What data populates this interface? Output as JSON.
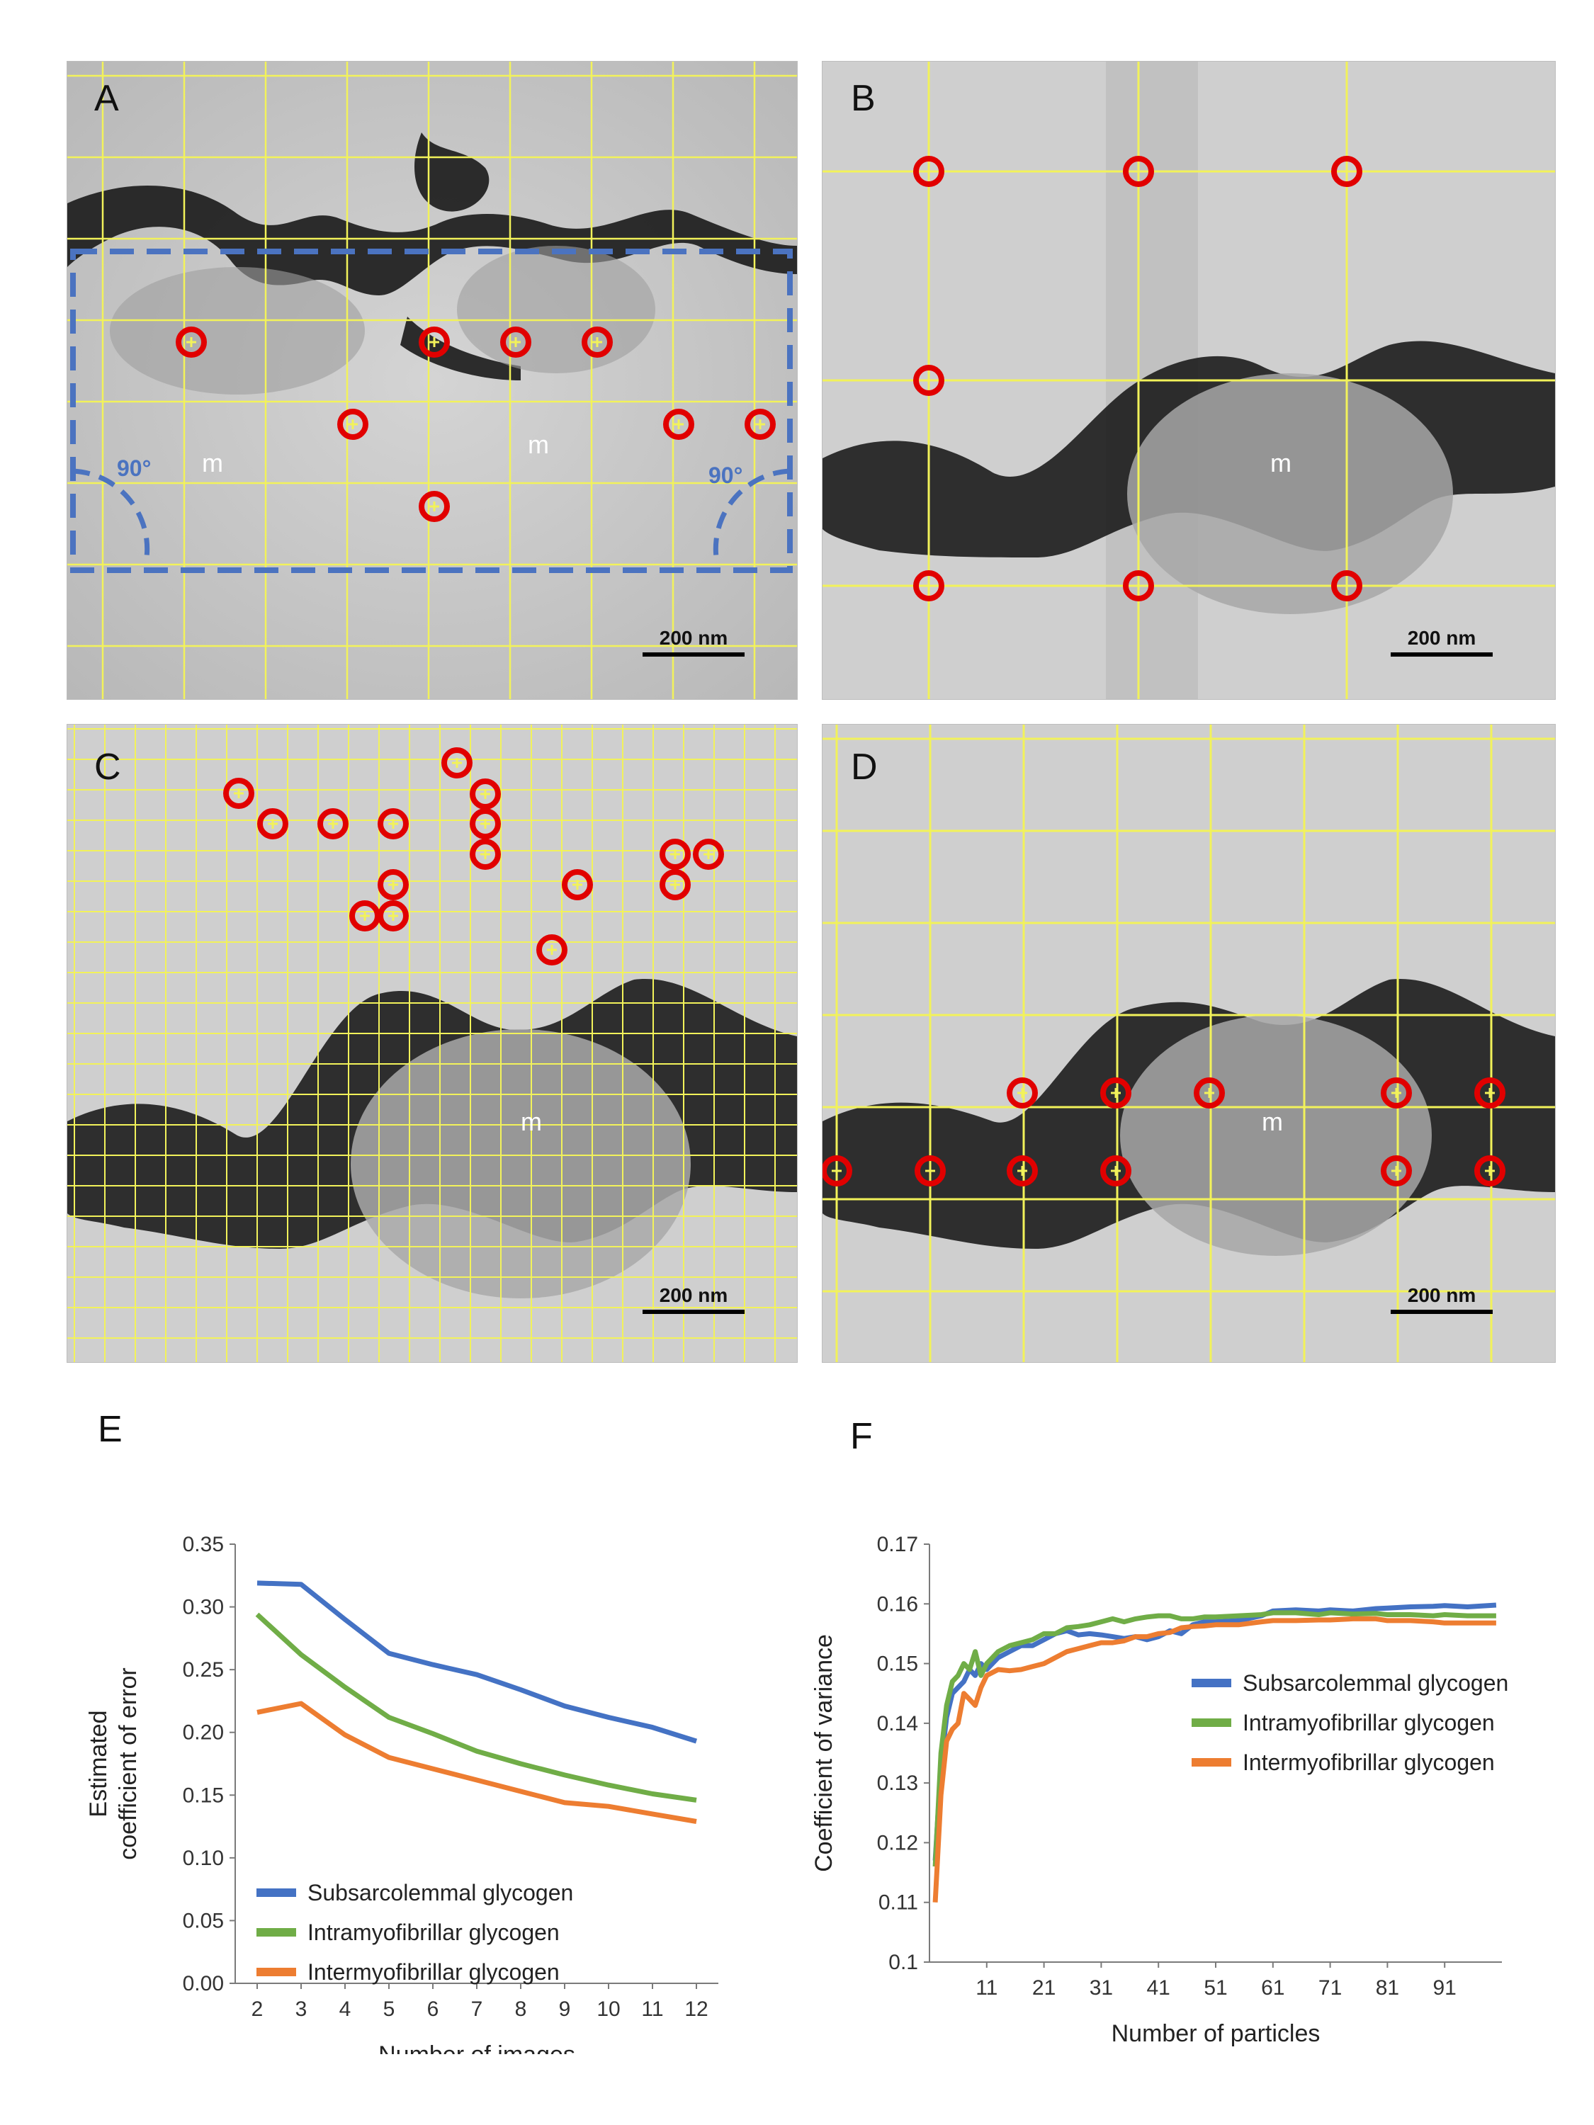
{
  "panels": {
    "A": {
      "label": "A",
      "m_labels": [
        "m",
        "m"
      ],
      "scale_bar": "200 nm",
      "angles": [
        "90°",
        "90°"
      ]
    },
    "B": {
      "label": "B",
      "m_labels": [
        "m"
      ],
      "scale_bar": "200 nm"
    },
    "C": {
      "label": "C",
      "m_labels": [
        "m"
      ],
      "scale_bar": "200 nm"
    },
    "D": {
      "label": "D",
      "m_labels": [
        "m"
      ],
      "scale_bar": "200 nm"
    }
  },
  "colors": {
    "blue": "#4472c4",
    "green": "#70ad47",
    "orange": "#ed7d31",
    "grid": "#f2f25a",
    "marker": "#e10000",
    "dashed_box": "#4b73c0"
  },
  "chart_data": [
    {
      "panel": "E",
      "type": "line",
      "title": "",
      "xlabel": "Number of images",
      "ylabel_lines": [
        "Estimated",
        "coefficient of error"
      ],
      "x": [
        2,
        3,
        4,
        5,
        6,
        7,
        8,
        9,
        10,
        11,
        12
      ],
      "x_ticks": [
        "2",
        "3",
        "4",
        "5",
        "6",
        "7",
        "8",
        "9",
        "10",
        "11",
        "12"
      ],
      "ylim": [
        0,
        0.35
      ],
      "y_ticks": [
        "0.00",
        "0.05",
        "0.10",
        "0.15",
        "0.20",
        "0.25",
        "0.30",
        "0.35"
      ],
      "legend_position": "bottom-left",
      "series": [
        {
          "name": "Subsarcolemmal glycogen",
          "color": "#4472c4",
          "values": [
            0.319,
            0.318,
            0.29,
            0.263,
            0.254,
            0.246,
            0.234,
            0.221,
            0.212,
            0.204,
            0.193
          ]
        },
        {
          "name": "Intramyofibrillar glycogen",
          "color": "#70ad47",
          "values": [
            0.294,
            0.262,
            0.236,
            0.212,
            0.199,
            0.185,
            0.175,
            0.166,
            0.158,
            0.151,
            0.146
          ]
        },
        {
          "name": "Intermyofibrillar glycogen",
          "color": "#ed7d31",
          "values": [
            0.216,
            0.223,
            0.198,
            0.18,
            0.171,
            0.162,
            0.153,
            0.144,
            0.141,
            0.135,
            0.129
          ]
        }
      ]
    },
    {
      "panel": "F",
      "type": "line",
      "title": "",
      "xlabel": "Number of particles",
      "ylabel": "Coefficient of variance",
      "x_range": [
        2,
        100
      ],
      "x_ticks": [
        "11",
        "21",
        "31",
        "41",
        "51",
        "61",
        "71",
        "81",
        "91"
      ],
      "ylim": [
        0.1,
        0.17
      ],
      "y_ticks": [
        "0.1",
        "0.11",
        "0.12",
        "0.13",
        "0.14",
        "0.15",
        "0.16",
        "0.17"
      ],
      "legend_position": "middle-right",
      "series": [
        {
          "name": "Subsarcolemmal glycogen",
          "color": "#4472c4",
          "x": [
            2,
            3,
            4,
            5,
            6,
            7,
            8,
            9,
            10,
            11,
            13,
            15,
            17,
            19,
            21,
            23,
            25,
            27,
            29,
            31,
            33,
            35,
            37,
            39,
            41,
            43,
            45,
            47,
            49,
            51,
            55,
            59,
            61,
            65,
            69,
            71,
            75,
            79,
            81,
            85,
            89,
            91,
            95,
            100
          ],
          "values": [
            0.117,
            0.133,
            0.141,
            0.145,
            0.146,
            0.147,
            0.149,
            0.148,
            0.15,
            0.149,
            0.151,
            0.152,
            0.153,
            0.153,
            0.154,
            0.155,
            0.1555,
            0.1548,
            0.155,
            0.1548,
            0.1545,
            0.1542,
            0.1545,
            0.154,
            0.1545,
            0.1555,
            0.155,
            0.1565,
            0.157,
            0.157,
            0.1572,
            0.158,
            0.1588,
            0.159,
            0.1588,
            0.159,
            0.1588,
            0.1592,
            0.1593,
            0.1595,
            0.1596,
            0.1597,
            0.1595,
            0.1598
          ]
        },
        {
          "name": "Intramyofibrillar glycogen",
          "color": "#70ad47",
          "x": [
            2,
            3,
            4,
            5,
            6,
            7,
            8,
            9,
            10,
            11,
            13,
            15,
            17,
            19,
            21,
            23,
            25,
            27,
            29,
            31,
            33,
            35,
            37,
            39,
            41,
            43,
            45,
            47,
            49,
            51,
            55,
            59,
            61,
            65,
            69,
            71,
            75,
            79,
            81,
            85,
            89,
            91,
            95,
            100
          ],
          "values": [
            0.116,
            0.135,
            0.143,
            0.147,
            0.148,
            0.15,
            0.149,
            0.152,
            0.148,
            0.15,
            0.152,
            0.153,
            0.1535,
            0.154,
            0.155,
            0.155,
            0.156,
            0.1562,
            0.1565,
            0.157,
            0.1575,
            0.157,
            0.1575,
            0.1578,
            0.158,
            0.158,
            0.1575,
            0.1575,
            0.1578,
            0.1578,
            0.158,
            0.1582,
            0.1585,
            0.1585,
            0.1582,
            0.1585,
            0.1583,
            0.1584,
            0.1582,
            0.1582,
            0.158,
            0.1582,
            0.158,
            0.158
          ]
        },
        {
          "name": "Intermyofibrillar glycogen",
          "color": "#ed7d31",
          "x": [
            2,
            3,
            4,
            5,
            6,
            7,
            8,
            9,
            10,
            11,
            13,
            15,
            17,
            19,
            21,
            23,
            25,
            27,
            29,
            31,
            33,
            35,
            37,
            39,
            41,
            43,
            45,
            47,
            49,
            51,
            55,
            59,
            61,
            65,
            69,
            71,
            75,
            79,
            81,
            85,
            89,
            91,
            95,
            100
          ],
          "values": [
            0.11,
            0.128,
            0.137,
            0.139,
            0.14,
            0.145,
            0.144,
            0.143,
            0.146,
            0.148,
            0.149,
            0.1488,
            0.149,
            0.1495,
            0.15,
            0.151,
            0.152,
            0.1525,
            0.153,
            0.1535,
            0.1535,
            0.1538,
            0.1545,
            0.1545,
            0.155,
            0.1552,
            0.156,
            0.1562,
            0.1563,
            0.1565,
            0.1565,
            0.157,
            0.1572,
            0.1572,
            0.1573,
            0.1573,
            0.1575,
            0.1575,
            0.1572,
            0.1572,
            0.157,
            0.1568,
            0.1568,
            0.1568
          ]
        }
      ]
    }
  ]
}
